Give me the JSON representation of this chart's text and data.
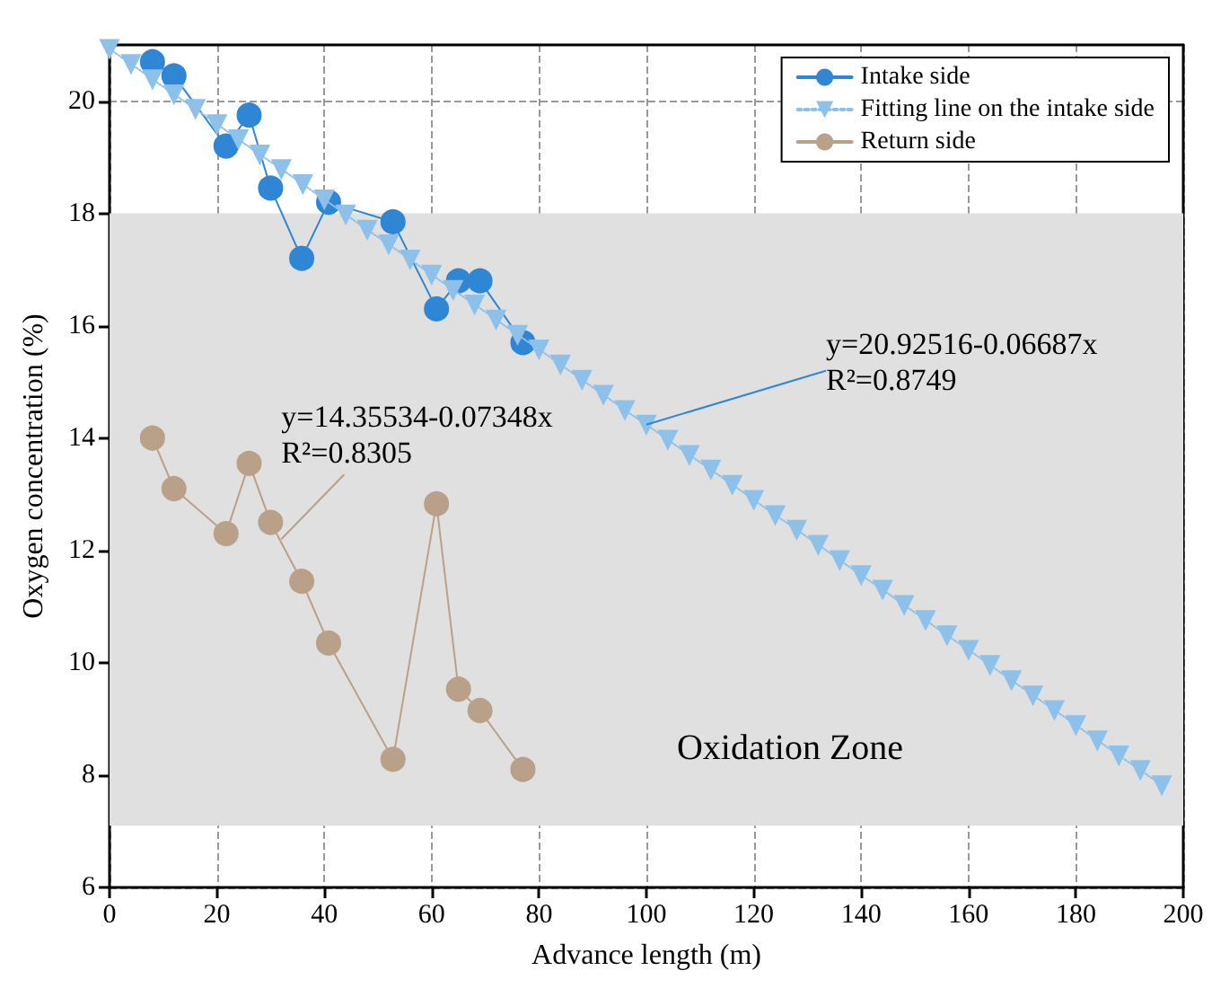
{
  "chart_data": {
    "type": "line",
    "xlabel": "Advance length (m)",
    "ylabel": "Oxygen concentration (%)",
    "xlim": [
      0,
      200
    ],
    "xticks": [
      0,
      20,
      40,
      60,
      80,
      100,
      120,
      140,
      160,
      180,
      200
    ],
    "ylim": [
      6,
      21
    ],
    "yticks": [
      6,
      8,
      10,
      12,
      14,
      16,
      18,
      20
    ],
    "grid": true,
    "legend": "top right",
    "series": [
      {
        "name": "Intake side",
        "color": "#2e86d4",
        "marker": "circle",
        "line_style": "solid",
        "x": [
          8,
          12,
          21.7,
          26,
          30,
          35.8,
          40.8,
          52.8,
          60.9,
          65,
          69,
          77
        ],
        "values": [
          20.7,
          20.45,
          19.2,
          19.75,
          18.45,
          17.2,
          18.2,
          17.85,
          16.3,
          16.8,
          16.8,
          15.7
        ]
      },
      {
        "name": "Fitting line on the intake side",
        "color": "#8ec1ea",
        "marker": "triangle",
        "line_style": "dotted",
        "x": [
          0,
          4,
          8,
          12,
          16,
          20,
          24,
          28,
          32,
          36,
          40,
          44,
          48,
          52,
          56,
          60,
          64,
          68,
          72,
          76,
          80,
          84,
          88,
          92,
          96,
          100,
          104,
          108,
          112,
          116,
          120,
          124,
          128,
          132,
          136,
          140,
          144,
          148,
          152,
          156,
          160,
          164,
          168,
          172,
          176,
          180,
          184,
          188,
          192,
          196
        ],
        "values": [
          20.93,
          20.66,
          20.39,
          20.12,
          19.86,
          19.59,
          19.32,
          19.05,
          18.79,
          18.52,
          18.25,
          17.98,
          17.71,
          17.45,
          17.18,
          16.91,
          16.64,
          16.38,
          16.11,
          15.84,
          15.58,
          15.31,
          15.04,
          14.77,
          14.5,
          14.24,
          13.97,
          13.7,
          13.44,
          13.17,
          12.9,
          12.63,
          12.37,
          12.1,
          11.83,
          11.56,
          11.3,
          11.03,
          10.76,
          10.49,
          10.23,
          9.96,
          9.69,
          9.42,
          9.16,
          8.89,
          8.62,
          8.35,
          8.09,
          7.82
        ]
      },
      {
        "name": "Return side",
        "color": "#b9a089",
        "marker": "circle",
        "line_style": "solid",
        "x": [
          8,
          12,
          21.7,
          26,
          30,
          35.8,
          40.8,
          52.8,
          60.9,
          65,
          69,
          77
        ],
        "values": [
          14.0,
          13.1,
          12.3,
          13.55,
          12.5,
          11.45,
          10.35,
          8.28,
          12.83,
          9.53,
          9.15,
          8.1
        ]
      }
    ],
    "bands": [
      {
        "axis": "y",
        "from": 7.1,
        "to": 18,
        "label": "Oxidation Zone",
        "color": "#e0e0e0"
      }
    ],
    "annotations": [
      {
        "text": "y=20.92516-0.06687x\nR²=0.8749",
        "x": 100,
        "y": 14.24
      },
      {
        "text": "y=14.35534-0.07348x\nR²=0.8305",
        "x": 32,
        "y": 12.2
      }
    ]
  }
}
